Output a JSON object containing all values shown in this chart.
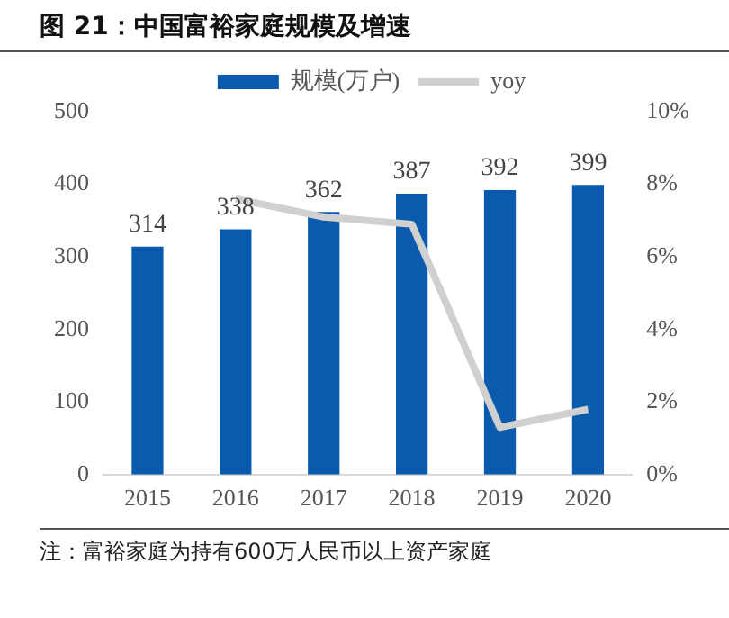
{
  "chart_data": {
    "type": "bar",
    "title": "图 21：中国富裕家庭规模及增速",
    "categories": [
      "2015",
      "2016",
      "2017",
      "2018",
      "2019",
      "2020"
    ],
    "series": [
      {
        "name": "规模(万户)",
        "color": "#0a5aad",
        "values": [
          314,
          338,
          362,
          387,
          392,
          399
        ],
        "value_labels": [
          "314",
          "338",
          "362",
          "387",
          "392",
          "399"
        ]
      },
      {
        "name": "yoy",
        "type": "line",
        "axis": "y2",
        "color": "#d0d0d0",
        "values": [
          null,
          7.6,
          7.1,
          6.9,
          1.3,
          1.8
        ]
      }
    ],
    "ylim": [
      0,
      500
    ],
    "yticks": [
      0,
      100,
      200,
      300,
      400,
      500
    ],
    "y2lim": [
      0,
      10
    ],
    "y2ticks": [
      {
        "value": 0,
        "label": "0%"
      },
      {
        "value": 2,
        "label": "2%"
      },
      {
        "value": 4,
        "label": "4%"
      },
      {
        "value": 6,
        "label": "6%"
      },
      {
        "value": 8,
        "label": "8%"
      },
      {
        "value": 10,
        "label": "10%"
      }
    ],
    "grid": false,
    "legend": "top",
    "marker": "none",
    "annotations": [
      "注：富裕家庭为持有600万人民币以上资产家庭"
    ]
  }
}
